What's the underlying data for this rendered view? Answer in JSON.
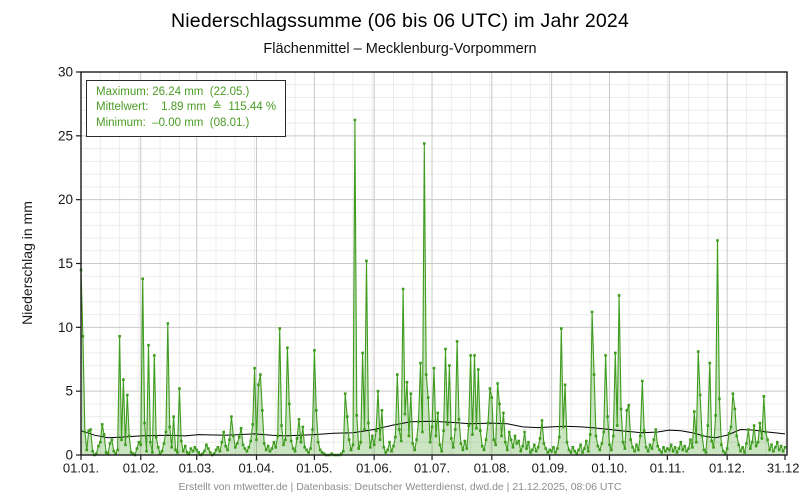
{
  "title": "Niederschlagssumme (06 bis 06 UTC) im Jahr 2024",
  "subtitle": "Flächenmittel – Mecklenburg-Vorpommern",
  "footer": "Erstellt von mtwetter.de | Datenbasis: Deutscher Wetterdienst, dwd.de | 21.12.2025, 08:06 UTC",
  "legend": {
    "maximum_line": "Maximum: 26.24 mm  (22.05.)",
    "mean_line": "Mittelwert:    1.89 mm  ≙  115.44 %",
    "minimum_line": "Minimum:  –0.00 mm  (08.01.)"
  },
  "colors": {
    "series_green": "#3e9c1e",
    "area_fill_green": "#3e9c1e",
    "legend_text_green": "#4a9b23",
    "mean_line_black": "#000000",
    "grid_minor": "#ececec",
    "grid_major": "#c9c9c9",
    "axis": "#1a1a1a",
    "tick_text": "#1a1a1a",
    "footer_text": "#8c8c8c"
  },
  "chart_data": {
    "type": "line",
    "title": "Niederschlagssumme (06 bis 06 UTC) im Jahr 2024",
    "subtitle": "Flächenmittel – Mecklenburg-Vorpommern",
    "xlabel": "",
    "ylabel": "Niederschlag in mm",
    "ylim": [
      0,
      30
    ],
    "yticks": [
      0,
      5,
      10,
      15,
      20,
      25,
      30
    ],
    "y_minor_step_mm": 1,
    "x_minor_step_days": 10,
    "grid": "on",
    "legend_position": "top-left",
    "year": 2024,
    "month_lengths": [
      31,
      29,
      31,
      30,
      31,
      30,
      31,
      31,
      30,
      31,
      30,
      31
    ],
    "xticks": [
      {
        "label": "01.01.",
        "day": 1
      },
      {
        "label": "01.02.",
        "day": 32
      },
      {
        "label": "01.03.",
        "day": 61
      },
      {
        "label": "01.04.",
        "day": 92
      },
      {
        "label": "01.05.",
        "day": 122
      },
      {
        "label": "01.06.",
        "day": 153
      },
      {
        "label": "01.07.",
        "day": 183
      },
      {
        "label": "01.08.",
        "day": 214
      },
      {
        "label": "01.09.",
        "day": 244
      },
      {
        "label": "01.10.",
        "day": 275
      },
      {
        "label": "01.11.",
        "day": 305
      },
      {
        "label": "01.12.",
        "day": 336
      },
      {
        "label": "31.12.",
        "day": 366
      }
    ],
    "stats": {
      "maximum_mm": 26.24,
      "maximum_date": "22.05.",
      "mean_mm": 1.89,
      "mean_percent_of_normal": 115.44,
      "minimum_mm": -0.0,
      "minimum_date": "08.01."
    },
    "series": [
      {
        "name": "Tagesniederschlag",
        "style": "line+markers+area",
        "values_by_month": [
          [
            14.5,
            9.3,
            1.8,
            0.4,
            1.9,
            2.0,
            0.3,
            0.0,
            0.1,
            0.7,
            1.0,
            2.4,
            1.6,
            0.2,
            0.1,
            0.9,
            1.2,
            0.3,
            0.1,
            0.4,
            9.3,
            1.2,
            5.9,
            0.8,
            4.7,
            1.5,
            0.2,
            0.1,
            0.0,
            0.5,
            1.0
          ],
          [
            0.8,
            13.8,
            2.5,
            0.3,
            8.6,
            1.0,
            0.2,
            7.8,
            1.4,
            0.6,
            0.1,
            0.3,
            0.9,
            1.8,
            10.3,
            2.2,
            0.6,
            3.0,
            0.4,
            0.2,
            5.2,
            1.1,
            0.3,
            0.7,
            0.2,
            0.1,
            0.5,
            0.3,
            0.6
          ],
          [
            0.4,
            0.2,
            0.0,
            0.1,
            0.3,
            0.8,
            0.5,
            0.2,
            0.0,
            0.1,
            0.4,
            0.6,
            0.3,
            1.0,
            1.8,
            0.7,
            0.4,
            1.2,
            3.0,
            1.5,
            0.6,
            0.9,
            1.4,
            2.1,
            0.8,
            0.5,
            0.3,
            0.6,
            1.1,
            2.4,
            6.8
          ],
          [
            1.2,
            5.5,
            6.3,
            3.5,
            0.9,
            0.4,
            0.7,
            0.3,
            0.5,
            1.0,
            0.6,
            1.5,
            9.9,
            2.3,
            0.8,
            1.2,
            8.4,
            4.0,
            1.1,
            0.5,
            0.3,
            1.3,
            2.8,
            1.0,
            2.2,
            0.6,
            0.4,
            0.2,
            0.5,
            2.0
          ],
          [
            8.2,
            3.5,
            1.0,
            0.4,
            0.2,
            0.1,
            0.0,
            0.0,
            0.0,
            0.1,
            0.0,
            0.0,
            0.0,
            0.0,
            0.1,
            0.3,
            4.8,
            3.0,
            1.2,
            0.4,
            0.8,
            26.24,
            3.1,
            0.5,
            1.0,
            8.0,
            2.0,
            15.2,
            2.5,
            0.6,
            1.5
          ],
          [
            0.8,
            1.9,
            5.0,
            1.2,
            3.5,
            0.6,
            0.2,
            0.4,
            1.0,
            0.3,
            0.7,
            1.4,
            6.3,
            2.0,
            1.1,
            13.0,
            3.2,
            5.7,
            1.5,
            4.8,
            0.9,
            0.4,
            1.2,
            2.6,
            7.2,
            1.8,
            24.4,
            6.3,
            4.5,
            1.0
          ],
          [
            2.2,
            6.8,
            1.5,
            3.3,
            0.8,
            0.3,
            1.9,
            8.3,
            2.4,
            7.0,
            1.3,
            0.6,
            2.0,
            8.9,
            2.8,
            0.9,
            0.4,
            1.1,
            0.5,
            2.3,
            7.8,
            1.6,
            7.8,
            2.1,
            6.7,
            1.9,
            0.7,
            0.4,
            1.2,
            2.5,
            5.2
          ],
          [
            4.5,
            1.2,
            0.8,
            5.6,
            4.0,
            1.5,
            3.3,
            1.0,
            0.4,
            1.8,
            1.2,
            0.6,
            1.5,
            0.9,
            1.1,
            0.3,
            0.7,
            1.8,
            0.5,
            1.0,
            0.2,
            0.4,
            0.8,
            0.3,
            0.6,
            1.3,
            2.7,
            0.9,
            0.5,
            0.2,
            0.4
          ],
          [
            0.3,
            0.6,
            0.2,
            0.5,
            1.4,
            9.9,
            2.2,
            5.5,
            1.0,
            0.4,
            0.2,
            0.6,
            0.3,
            0.1,
            0.4,
            0.8,
            0.2,
            0.5,
            1.1,
            0.3,
            1.6,
            11.2,
            6.3,
            1.5,
            0.7,
            0.4,
            0.9,
            1.8,
            7.8,
            3.0
          ],
          [
            0.8,
            0.4,
            1.5,
            8.0,
            2.3,
            12.5,
            3.6,
            1.0,
            0.5,
            3.5,
            3.9,
            1.2,
            0.6,
            0.3,
            0.8,
            0.4,
            1.5,
            5.8,
            1.9,
            0.6,
            0.3,
            0.8,
            0.5,
            1.2,
            2.0,
            0.7,
            0.4,
            0.2,
            0.6,
            0.3,
            0.5
          ],
          [
            0.4,
            0.8,
            0.3,
            0.6,
            0.2,
            0.5,
            1.0,
            0.4,
            0.7,
            0.3,
            0.5,
            1.2,
            0.6,
            3.4,
            1.0,
            8.1,
            4.7,
            1.5,
            0.4,
            0.2,
            2.3,
            7.2,
            1.1,
            0.6,
            3.1,
            16.8,
            4.4,
            0.8,
            0.3,
            0.1
          ],
          [
            0.5,
            1.7,
            2.2,
            4.8,
            3.6,
            1.5,
            0.8,
            0.3,
            0.6,
            0.2,
            0.9,
            2.0,
            0.5,
            1.0,
            2.3,
            0.7,
            1.0,
            2.5,
            1.3,
            4.6,
            1.8,
            1.2,
            0.4,
            0.8,
            0.3,
            0.6,
            1.0,
            0.4,
            0.7,
            0.3,
            0.6
          ]
        ]
      },
      {
        "name": "Mittelwert",
        "style": "line",
        "points": [
          [
            1,
            1.9
          ],
          [
            8,
            1.55
          ],
          [
            15,
            1.35
          ],
          [
            22,
            1.4
          ],
          [
            32,
            1.5
          ],
          [
            46,
            1.55
          ],
          [
            55,
            1.5
          ],
          [
            62,
            1.6
          ],
          [
            76,
            1.55
          ],
          [
            91,
            1.65
          ],
          [
            100,
            1.55
          ],
          [
            107,
            1.5
          ],
          [
            122,
            1.6
          ],
          [
            132,
            1.7
          ],
          [
            142,
            1.75
          ],
          [
            153,
            2.0
          ],
          [
            163,
            2.35
          ],
          [
            172,
            2.6
          ],
          [
            183,
            2.65
          ],
          [
            193,
            2.55
          ],
          [
            203,
            2.45
          ],
          [
            214,
            2.5
          ],
          [
            222,
            2.45
          ],
          [
            230,
            2.2
          ],
          [
            238,
            2.15
          ],
          [
            245,
            2.2
          ],
          [
            252,
            2.25
          ],
          [
            260,
            2.2
          ],
          [
            266,
            2.15
          ],
          [
            275,
            2.0
          ],
          [
            284,
            1.85
          ],
          [
            292,
            1.75
          ],
          [
            300,
            1.8
          ],
          [
            306,
            1.95
          ],
          [
            312,
            1.9
          ],
          [
            318,
            1.75
          ],
          [
            325,
            1.45
          ],
          [
            330,
            1.35
          ],
          [
            336,
            1.55
          ],
          [
            343,
            2.0
          ],
          [
            350,
            1.95
          ],
          [
            357,
            1.8
          ],
          [
            366,
            1.65
          ]
        ]
      }
    ]
  }
}
